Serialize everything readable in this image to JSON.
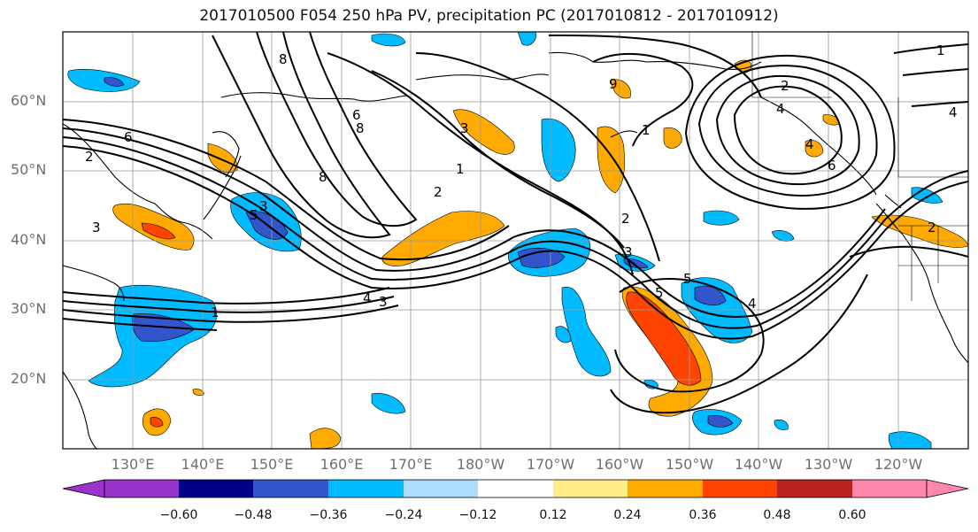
{
  "title": "2017010500 F054 250 hPa PV, precipitation PC (2017010812 - 2017010912)",
  "lat_labels": [
    "60°N",
    "50°N",
    "40°N",
    "30°N",
    "20°N"
  ],
  "lon_labels": [
    "130°E",
    "140°E",
    "150°E",
    "160°E",
    "170°E",
    "180°W",
    "170°W",
    "160°W",
    "150°W",
    "140°W",
    "130°W",
    "120°W"
  ],
  "contour_labels": [
    "8",
    "6",
    "2",
    "3",
    "8",
    "6",
    "8",
    "3",
    "1",
    "2",
    "2",
    "3",
    "4",
    "3",
    "1",
    "5",
    "4",
    "1",
    "5",
    "9",
    "2",
    "4",
    "6",
    "4",
    "1",
    "2",
    "4",
    "3",
    "5"
  ],
  "colorbar": {
    "colors": [
      "#9933cc",
      "#000088",
      "#3355cc",
      "#00bbff",
      "#aaddff",
      "#ffffff",
      "#ffee88",
      "#ffaa00",
      "#ff4400",
      "#bb2222",
      "#ff88aa"
    ],
    "labels": [
      "−0.60",
      "−0.48",
      "−0.36",
      "−0.24",
      "−0.12",
      "0.12",
      "0.24",
      "0.36",
      "0.48",
      "0.60"
    ]
  }
}
